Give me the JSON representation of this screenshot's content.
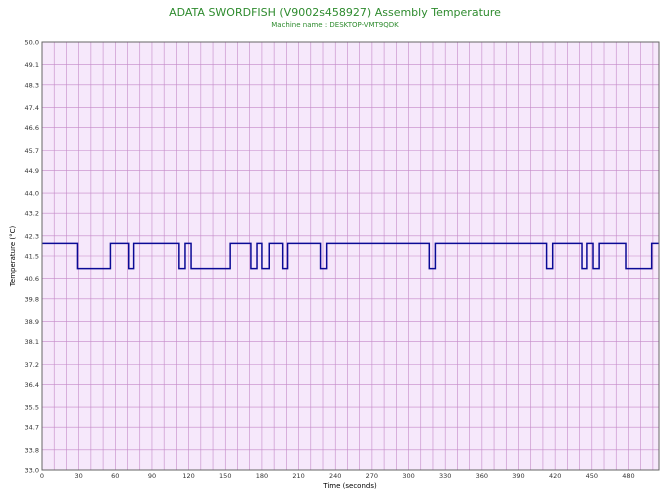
{
  "colors": {
    "title": "#2e8b2e",
    "plot_background": "#f6e8fb",
    "grid": "#c489c8",
    "series": "#0a0a96",
    "axis": "#666666"
  },
  "chart_data": {
    "type": "line",
    "title": "ADATA SWORDFISH (V9002s458927) Assembly Temperature",
    "subtitle": "Machine name : DESKTOP-VMT9QDK",
    "xlabel": "Time (seconds)",
    "ylabel": "Temperature (°C)",
    "xlim": [
      0,
      505
    ],
    "ylim": [
      33.0,
      50.0
    ],
    "grid": true,
    "x_ticks": [
      0,
      30,
      60,
      90,
      120,
      150,
      180,
      210,
      240,
      270,
      300,
      330,
      360,
      390,
      420,
      450,
      480
    ],
    "y_ticks": [
      "33.0",
      "33.8",
      "34.7",
      "35.5",
      "36.4",
      "37.2",
      "38.1",
      "38.9",
      "39.8",
      "40.6",
      "41.5",
      "42.3",
      "43.2",
      "44.0",
      "44.9",
      "45.7",
      "46.6",
      "47.4",
      "48.3",
      "49.1",
      "50.0"
    ],
    "series": [
      {
        "values": [
          [
            0,
            42.0
          ],
          [
            29,
            42.0
          ],
          [
            29,
            41.0
          ],
          [
            56,
            41.0
          ],
          [
            56,
            42.0
          ],
          [
            71,
            42.0
          ],
          [
            71,
            41.0
          ],
          [
            75,
            41.0
          ],
          [
            75,
            42.0
          ],
          [
            112,
            42.0
          ],
          [
            112,
            41.0
          ],
          [
            117,
            41.0
          ],
          [
            117,
            42.0
          ],
          [
            122,
            42.0
          ],
          [
            122,
            41.0
          ],
          [
            154,
            41.0
          ],
          [
            154,
            42.0
          ],
          [
            171,
            42.0
          ],
          [
            171,
            41.0
          ],
          [
            176,
            41.0
          ],
          [
            176,
            42.0
          ],
          [
            180,
            42.0
          ],
          [
            180,
            41.0
          ],
          [
            186,
            41.0
          ],
          [
            186,
            42.0
          ],
          [
            197,
            42.0
          ],
          [
            197,
            41.0
          ],
          [
            201,
            41.0
          ],
          [
            201,
            42.0
          ],
          [
            228,
            42.0
          ],
          [
            228,
            41.0
          ],
          [
            233,
            41.0
          ],
          [
            233,
            42.0
          ],
          [
            317,
            42.0
          ],
          [
            317,
            41.0
          ],
          [
            322,
            41.0
          ],
          [
            322,
            42.0
          ],
          [
            413,
            42.0
          ],
          [
            413,
            41.0
          ],
          [
            418,
            41.0
          ],
          [
            418,
            42.0
          ],
          [
            442,
            42.0
          ],
          [
            442,
            41.0
          ],
          [
            446,
            41.0
          ],
          [
            446,
            42.0
          ],
          [
            451,
            42.0
          ],
          [
            451,
            41.0
          ],
          [
            456,
            41.0
          ],
          [
            456,
            42.0
          ],
          [
            478,
            42.0
          ],
          [
            478,
            41.0
          ],
          [
            499,
            41.0
          ],
          [
            499,
            42.0
          ],
          [
            505,
            42.0
          ]
        ]
      }
    ]
  }
}
